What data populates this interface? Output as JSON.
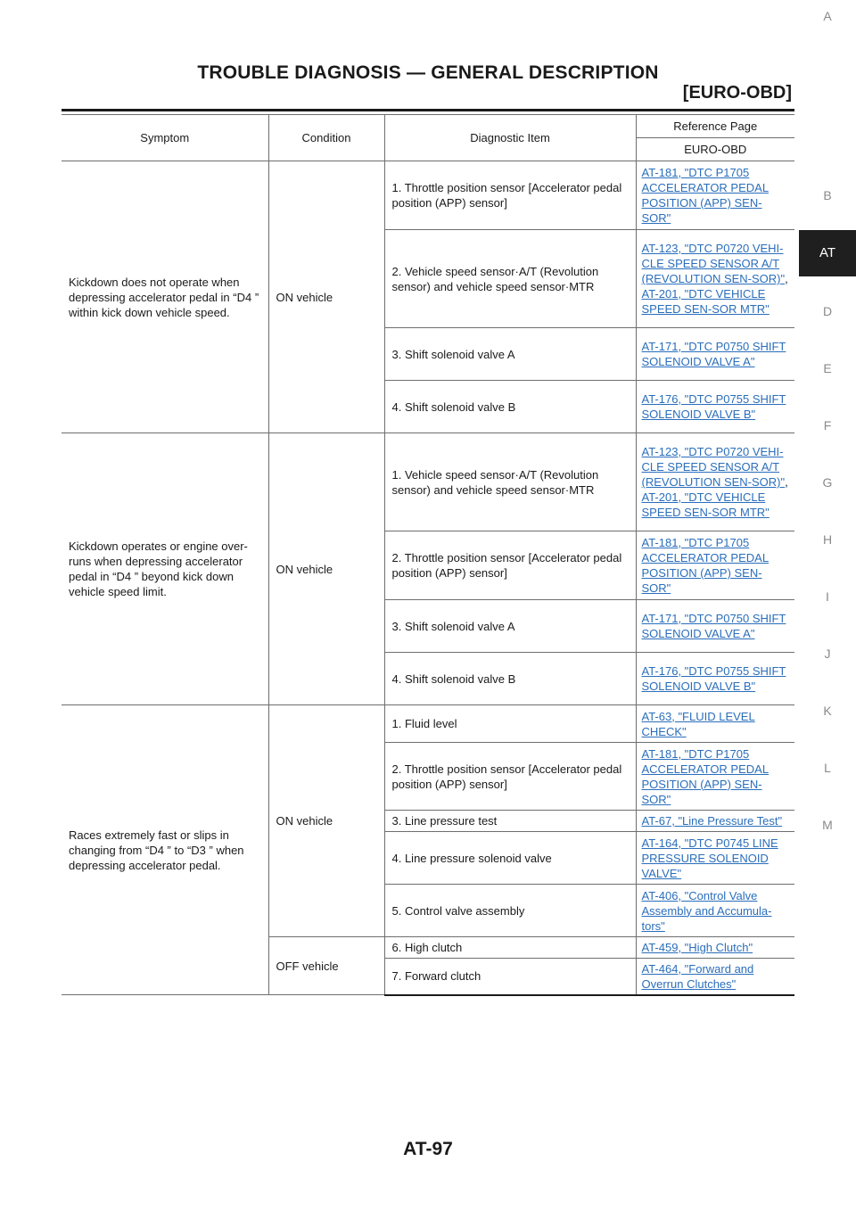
{
  "header": {
    "title": "TROUBLE DIAGNOSIS — GENERAL DESCRIPTION",
    "subtitle": "[EURO-OBD]"
  },
  "sidebar": {
    "letters": [
      "A",
      "B",
      "AT",
      "D",
      "E",
      "F",
      "G",
      "H",
      "I",
      "J",
      "K",
      "L",
      "M"
    ],
    "active": "AT"
  },
  "table": {
    "headers": {
      "symptom": "Symptom",
      "condition": "Condition",
      "diagnostic_item": "Diagnostic Item",
      "reference_page": "Reference Page",
      "euro_obd": "EURO-OBD"
    },
    "groups": [
      {
        "symptom": "Kickdown does not operate when depressing accelerator pedal in “D4 ” within kick down vehicle speed.",
        "condition": "ON vehicle",
        "rows": [
          {
            "item": "1. Throttle position sensor [Accelerator pedal position (APP) sensor]",
            "ref": [
              "AT-181, \"DTC P1705 ACCELERATOR PEDAL POSITION (APP) SEN-SOR\""
            ]
          },
          {
            "item": "2. Vehicle speed sensor·A/T (Revolution sensor) and vehicle speed sensor·MTR",
            "ref": [
              "AT-123, \"DTC P0720 VEHI-CLE SPEED SENSOR A/T (REVOLUTION SEN-SOR)\"",
              "AT-201, \"DTC VEHICLE SPEED SEN-SOR MTR\""
            ]
          },
          {
            "item": "3. Shift solenoid valve A",
            "ref": [
              "AT-171, \"DTC P0750 SHIFT SOLENOID VALVE A\""
            ]
          },
          {
            "item": "4. Shift solenoid valve B",
            "ref": [
              "AT-176, \"DTC P0755 SHIFT SOLENOID VALVE B\""
            ]
          }
        ]
      },
      {
        "symptom": "Kickdown operates or engine over-runs when depressing accelerator pedal in “D4 ” beyond kick down vehicle speed limit.",
        "condition": "ON vehicle",
        "rows": [
          {
            "item": "1. Vehicle speed sensor·A/T (Revolution sensor) and vehicle speed sensor·MTR",
            "ref": [
              "AT-123, \"DTC P0720 VEHI-CLE SPEED SENSOR A/T (REVOLUTION SEN-SOR)\"",
              "AT-201, \"DTC VEHICLE SPEED SEN-SOR MTR\""
            ]
          },
          {
            "item": "2. Throttle position sensor [Accelerator pedal position (APP) sensor]",
            "ref": [
              "AT-181, \"DTC P1705 ACCELERATOR PEDAL POSITION (APP) SEN-SOR\""
            ]
          },
          {
            "item": "3. Shift solenoid valve A",
            "ref": [
              "AT-171, \"DTC P0750 SHIFT SOLENOID VALVE A\""
            ]
          },
          {
            "item": "4. Shift solenoid valve B",
            "ref": [
              "AT-176, \"DTC P0755 SHIFT SOLENOID VALVE B\""
            ]
          }
        ]
      },
      {
        "symptom": "Races extremely fast or slips in changing from “D4 ” to “D3 ” when depressing accelerator pedal.",
        "conditions": [
          {
            "condition": "ON vehicle",
            "rows": [
              {
                "item": "1. Fluid level",
                "ref": [
                  "AT-63, \"FLUID LEVEL CHECK\""
                ]
              },
              {
                "item": "2. Throttle position sensor [Accelerator pedal position (APP) sensor]",
                "ref": [
                  "AT-181, \"DTC P1705 ACCELERATOR PEDAL POSITION (APP) SEN-SOR\""
                ]
              },
              {
                "item": "3. Line pressure test",
                "ref": [
                  "AT-67, \"Line Pressure Test\""
                ]
              },
              {
                "item": "4. Line pressure solenoid valve",
                "ref": [
                  "AT-164, \"DTC P0745 LINE PRESSURE SOLENOID VALVE\""
                ]
              },
              {
                "item": "5. Control valve assembly",
                "ref": [
                  "AT-406, \"Control Valve Assembly and Accumula-tors\""
                ]
              }
            ]
          },
          {
            "condition": "OFF vehicle",
            "rows": [
              {
                "item": "6. High clutch",
                "ref": [
                  "AT-459, \"High Clutch\""
                ]
              },
              {
                "item": "7. Forward clutch",
                "ref": [
                  "AT-464, \"Forward and Overrun Clutches\""
                ]
              }
            ]
          }
        ]
      }
    ]
  },
  "footer": {
    "page_number": "AT-97"
  }
}
